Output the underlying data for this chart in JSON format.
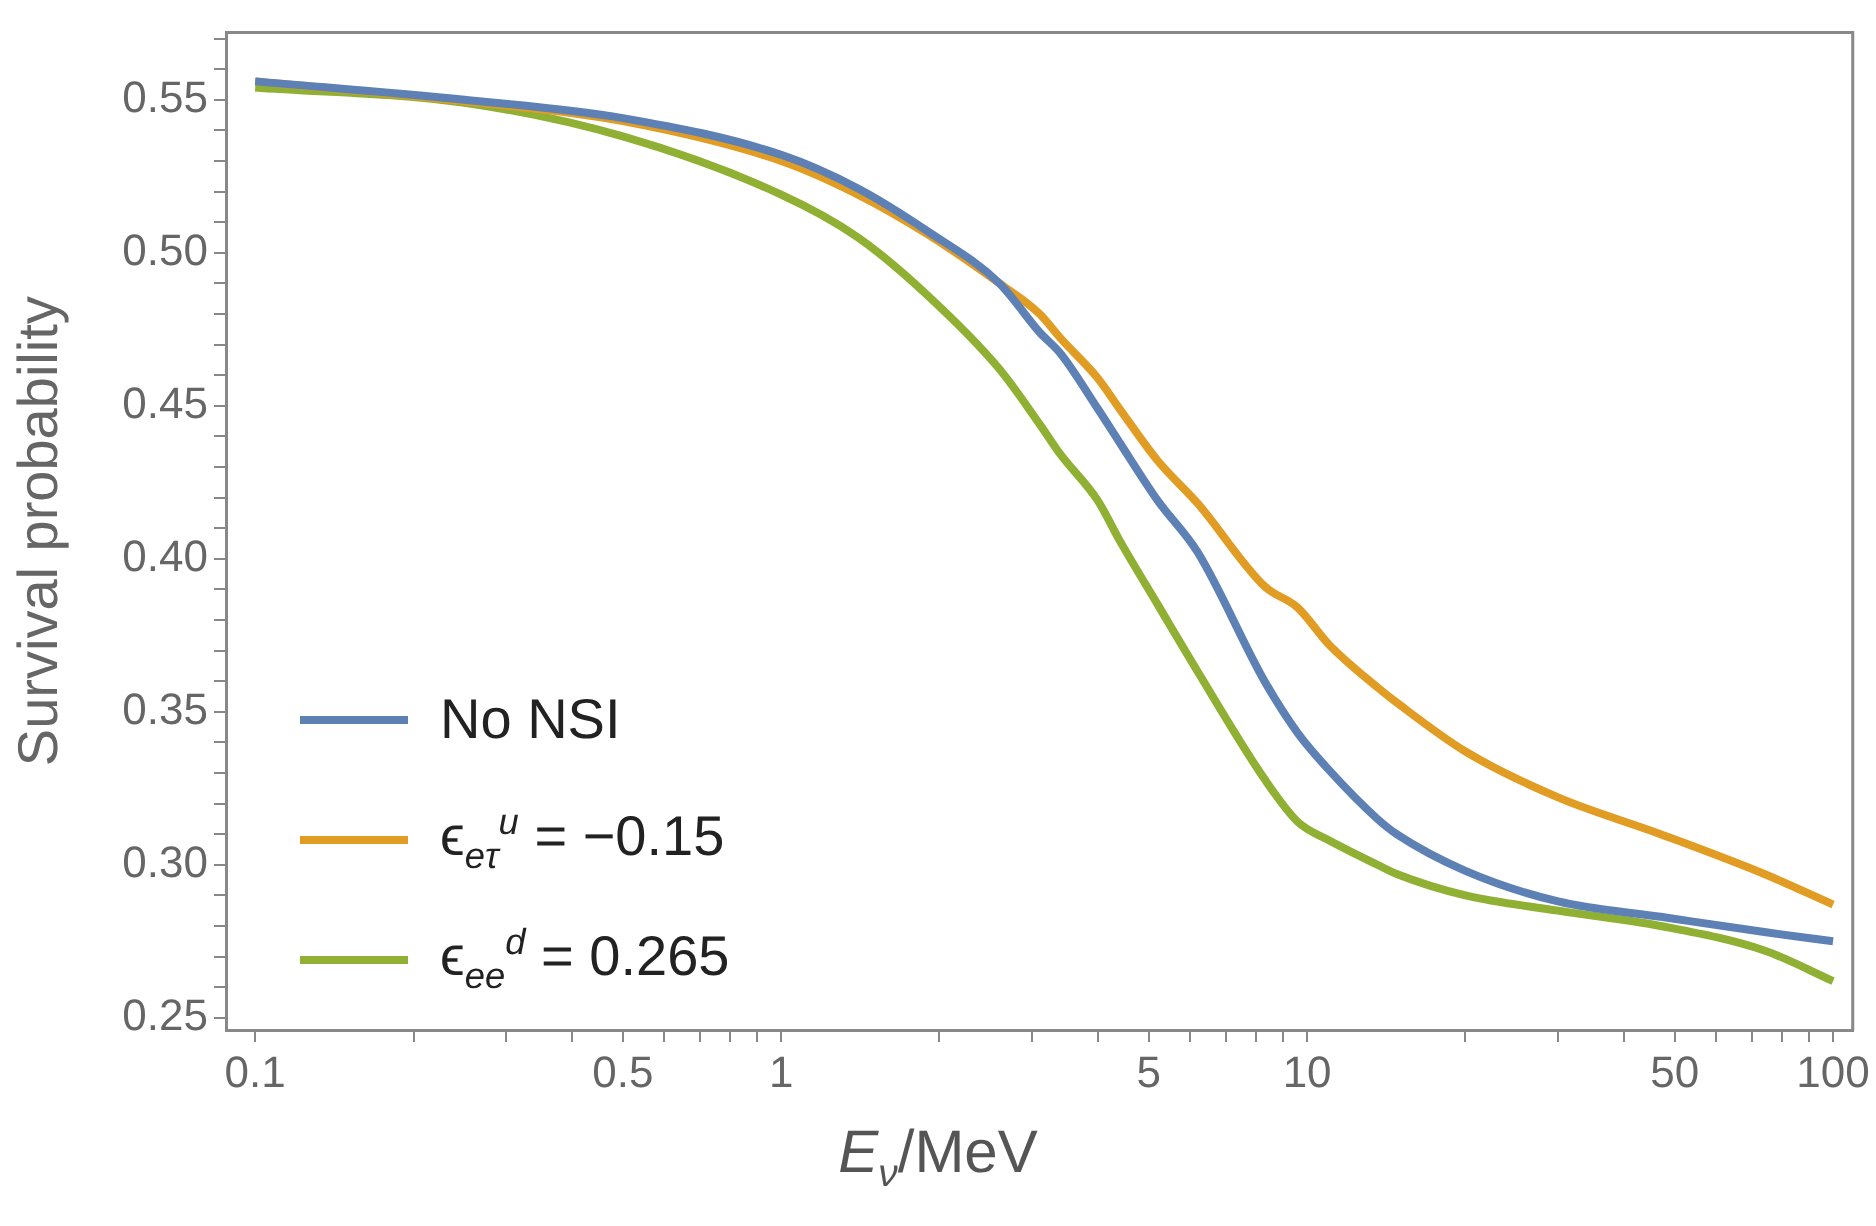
{
  "chart_data": {
    "type": "line",
    "xlabel": "E$_{ν}$/MeV",
    "ylabel": "Survival probability",
    "log": "x",
    "grid": false,
    "legend": "bottom left",
    "marker": "none",
    "line_style": "solid",
    "x": [
      0.1,
      0.25,
      0.5,
      1,
      1.4,
      1.9,
      2.6,
      3.1,
      3.4,
      4,
      4.4,
      5.2,
      6.2,
      8.3,
      9.6,
      11,
      13.6,
      14.8,
      20,
      30,
      47,
      74,
      100
    ],
    "xlim": [
      0.088,
      109
    ],
    "ylim": [
      0.246,
      0.572
    ],
    "xticks": [
      0.1,
      {
        "value": 0.2,
        "label": null
      },
      {
        "value": 0.3,
        "label": null
      },
      {
        "value": 0.4,
        "label": null
      },
      0.5,
      {
        "value": 0.6,
        "label": null
      },
      {
        "value": 0.7,
        "label": null
      },
      {
        "value": 0.8,
        "label": null
      },
      {
        "value": 0.9,
        "label": null
      },
      1,
      {
        "value": 2,
        "label": null
      },
      {
        "value": 3,
        "label": null
      },
      {
        "value": 4,
        "label": null
      },
      5,
      {
        "value": 6,
        "label": null
      },
      {
        "value": 7,
        "label": null
      },
      {
        "value": 8,
        "label": null
      },
      {
        "value": 9,
        "label": null
      },
      10,
      {
        "value": 20,
        "label": null
      },
      {
        "value": 30,
        "label": null
      },
      {
        "value": 40,
        "label": null
      },
      50,
      {
        "value": 60,
        "label": null
      },
      {
        "value": 70,
        "label": null
      },
      {
        "value": 80,
        "label": null
      },
      {
        "value": 90,
        "label": null
      },
      100
    ],
    "yticks": [
      {
        "value": 0.25,
        "label": "0.25"
      },
      {
        "value": 0.26,
        "label": null
      },
      {
        "value": 0.27,
        "label": null
      },
      {
        "value": 0.28,
        "label": null
      },
      {
        "value": 0.29,
        "label": null
      },
      {
        "value": 0.3,
        "label": "0.30"
      },
      {
        "value": 0.31,
        "label": null
      },
      {
        "value": 0.32,
        "label": null
      },
      {
        "value": 0.33,
        "label": null
      },
      {
        "value": 0.34,
        "label": null
      },
      {
        "value": 0.35,
        "label": "0.35"
      },
      {
        "value": 0.36,
        "label": null
      },
      {
        "value": 0.37,
        "label": null
      },
      {
        "value": 0.38,
        "label": null
      },
      {
        "value": 0.39,
        "label": null
      },
      {
        "value": 0.4,
        "label": "0.40"
      },
      {
        "value": 0.41,
        "label": null
      },
      {
        "value": 0.42,
        "label": null
      },
      {
        "value": 0.43,
        "label": null
      },
      {
        "value": 0.44,
        "label": null
      },
      {
        "value": 0.45,
        "label": "0.45"
      },
      {
        "value": 0.46,
        "label": null
      },
      {
        "value": 0.47,
        "label": null
      },
      {
        "value": 0.48,
        "label": null
      },
      {
        "value": 0.49,
        "label": null
      },
      {
        "value": 0.5,
        "label": "0.50"
      },
      {
        "value": 0.51,
        "label": null
      },
      {
        "value": 0.52,
        "label": null
      },
      {
        "value": 0.53,
        "label": null
      },
      {
        "value": 0.54,
        "label": null
      },
      {
        "value": 0.55,
        "label": "0.55"
      },
      {
        "value": 0.56,
        "label": null
      },
      {
        "value": 0.57,
        "label": null
      }
    ],
    "series": [
      {
        "name": "No NSI",
        "color": "#5e81b5",
        "values": [
          0.556,
          0.55,
          0.544,
          0.532,
          0.521,
          0.507,
          0.49,
          0.474,
          0.467,
          0.449,
          0.438,
          0.419,
          0.402,
          0.36,
          0.343,
          0.331,
          0.315,
          0.31,
          0.298,
          0.288,
          0.283,
          0.278,
          0.275
        ]
      },
      {
        "name": "ϵ$_{eτ}$$^{u}$ = −0.15",
        "color": "#e19c24",
        "values": [
          0.556,
          0.5495,
          0.543,
          0.53,
          0.519,
          0.506,
          0.49,
          0.48,
          0.472,
          0.459,
          0.449,
          0.432,
          0.418,
          0.391,
          0.384,
          0.372,
          0.358,
          0.353,
          0.337,
          0.322,
          0.31,
          0.297,
          0.287
        ]
      },
      {
        "name": "ϵ$_{ee}$$^{d}$ = 0.265",
        "color": "#8fb032",
        "values": [
          0.554,
          0.549,
          0.538,
          0.519,
          0.505,
          0.486,
          0.462,
          0.444,
          0.434,
          0.419,
          0.406,
          0.385,
          0.363,
          0.328,
          0.314,
          0.308,
          0.3,
          0.297,
          0.29,
          0.285,
          0.28,
          0.272,
          0.262
        ]
      }
    ]
  }
}
